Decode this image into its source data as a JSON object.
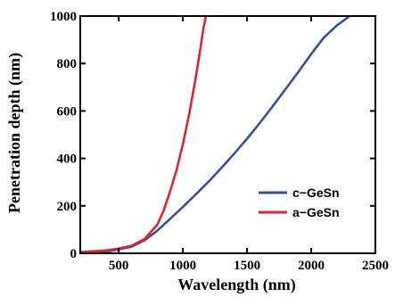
{
  "chart_data": {
    "type": "line",
    "xlabel": "Wavelength (nm)",
    "ylabel": "Penetration depth (nm)",
    "xlim": [
      200,
      2500
    ],
    "ylim": [
      0,
      1000
    ],
    "xticks": [
      500,
      1000,
      1500,
      2000,
      2500
    ],
    "yticks": [
      0,
      200,
      400,
      600,
      800,
      1000
    ],
    "grid": false,
    "legend_position": "bottom-right",
    "series": [
      {
        "name": "c−GeSn",
        "color": "#3550a0",
        "x": [
          200,
          400,
          600,
          700,
          800,
          900,
          1000,
          1100,
          1200,
          1300,
          1400,
          1500,
          1600,
          1700,
          1800,
          1900,
          2000,
          2100,
          2200,
          2300
        ],
        "y": [
          2,
          6,
          28,
          55,
          95,
          145,
          195,
          248,
          302,
          360,
          420,
          483,
          550,
          620,
          692,
          765,
          840,
          910,
          960,
          1000
        ]
      },
      {
        "name": "a−GeSn",
        "color": "#e02530",
        "x": [
          200,
          400,
          500,
          600,
          700,
          800,
          850,
          900,
          950,
          1000,
          1050,
          1100,
          1130,
          1160,
          1180
        ],
        "y": [
          5,
          12,
          20,
          32,
          60,
          120,
          180,
          260,
          350,
          460,
          590,
          740,
          840,
          950,
          1000
        ]
      }
    ]
  }
}
